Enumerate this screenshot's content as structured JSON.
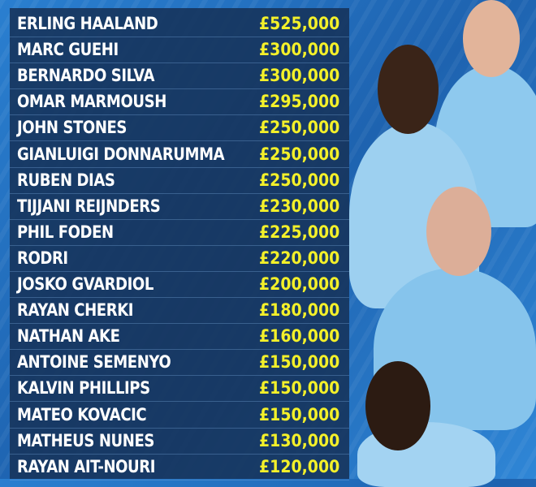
{
  "colors": {
    "background": "#2370c0",
    "panel": "#16345c",
    "name": "#ffffff",
    "wage": "#f3f02a"
  },
  "rows": [
    {
      "name": "ERLING HAALAND",
      "wage": "£525,000"
    },
    {
      "name": "MARC GUEHI",
      "wage": "£300,000"
    },
    {
      "name": "BERNARDO SILVA",
      "wage": "£300,000"
    },
    {
      "name": "OMAR MARMOUSH",
      "wage": "£295,000"
    },
    {
      "name": "JOHN STONES",
      "wage": "£250,000"
    },
    {
      "name": "GIANLUIGI DONNARUMMA",
      "wage": "£250,000"
    },
    {
      "name": "RUBEN DIAS",
      "wage": "£250,000"
    },
    {
      "name": "TIJJANI REIJNDERS",
      "wage": "£230,000"
    },
    {
      "name": "PHIL FODEN",
      "wage": "£225,000"
    },
    {
      "name": "RODRI",
      "wage": "£220,000"
    },
    {
      "name": "JOSKO GVARDIOL",
      "wage": "£200,000"
    },
    {
      "name": "RAYAN CHERKI",
      "wage": "£180,000"
    },
    {
      "name": "NATHAN AKE",
      "wage": "£160,000"
    },
    {
      "name": "ANTOINE SEMENYO",
      "wage": "£150,000"
    },
    {
      "name": "KALVIN PHILLIPS",
      "wage": "£150,000"
    },
    {
      "name": "MATEO KOVACIC",
      "wage": "£150,000"
    },
    {
      "name": "MATHEUS NUNES",
      "wage": "£130,000"
    },
    {
      "name": "RAYAN AIT-NOURI",
      "wage": "£120,000"
    }
  ]
}
